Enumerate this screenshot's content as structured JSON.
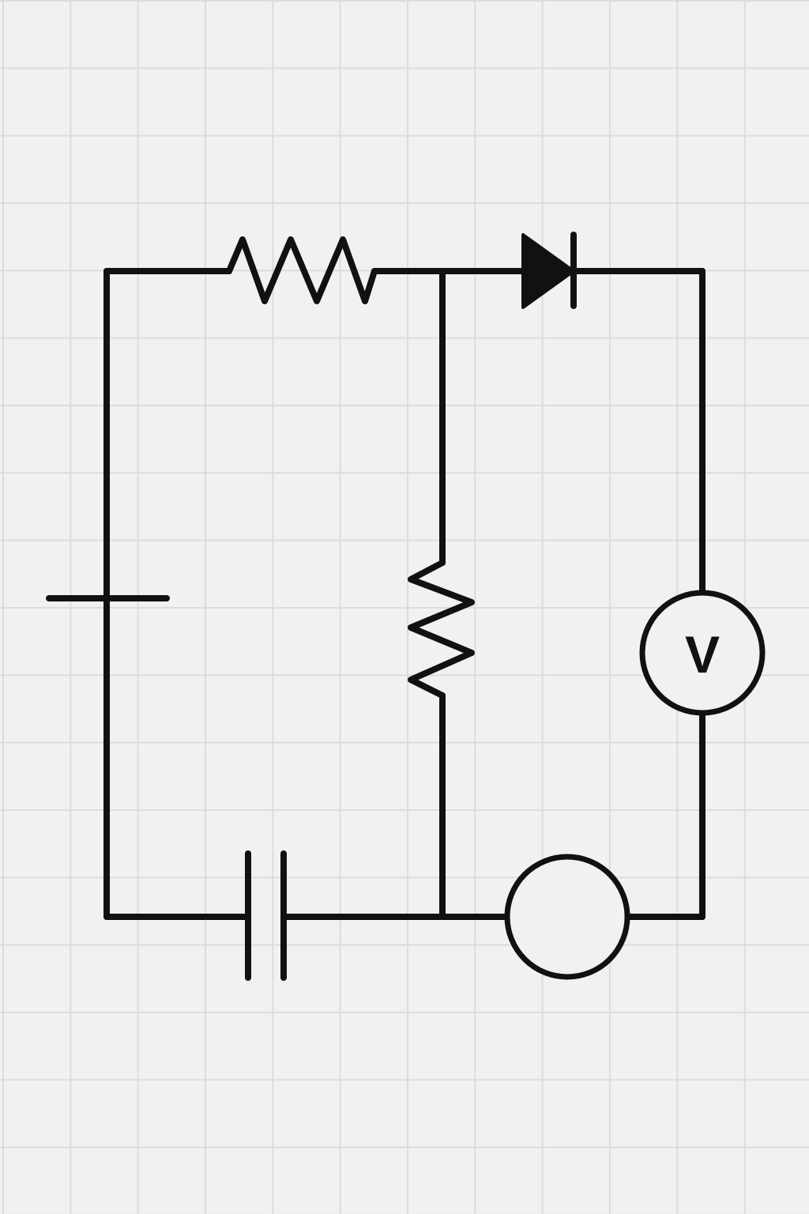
{
  "diagram": {
    "type": "circuit-schematic",
    "background": "graph-paper",
    "colors": {
      "ink": "#111111",
      "paper": "#f1f1ef",
      "grid": "#dcdcda"
    },
    "components": [
      {
        "id": "resistor-top",
        "kind": "resistor"
      },
      {
        "id": "resistor-middle",
        "kind": "resistor"
      },
      {
        "id": "diode",
        "kind": "diode"
      },
      {
        "id": "voltmeter",
        "kind": "meter",
        "label": "V"
      },
      {
        "id": "meter-blank",
        "kind": "meter",
        "label": ""
      },
      {
        "id": "capacitor",
        "kind": "capacitor"
      },
      {
        "id": "cell-plate",
        "kind": "battery-plate"
      }
    ]
  }
}
